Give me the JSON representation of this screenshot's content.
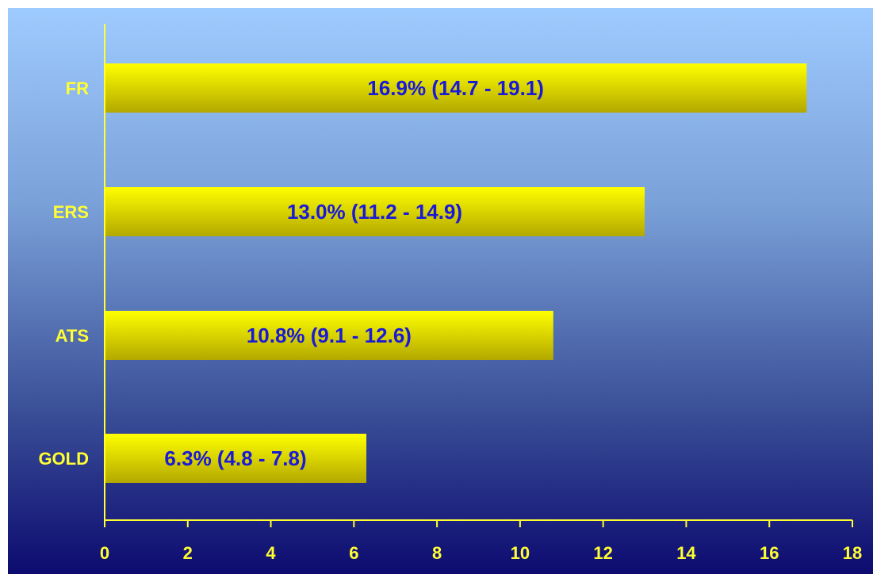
{
  "chart_data": {
    "type": "bar",
    "orientation": "horizontal",
    "categories": [
      "FR",
      "ERS",
      "ATS",
      "GOLD"
    ],
    "values": [
      16.9,
      13.0,
      10.8,
      6.3
    ],
    "data_labels": [
      "16.9% (14.7 - 19.1)",
      "13.0% (11.2 - 14.9)",
      "10.8% (9.1 - 12.6)",
      "6.3% (4.8 - 7.8)"
    ],
    "x_ticks": [
      "0",
      "2",
      "4",
      "6",
      "8",
      "10",
      "12",
      "14",
      "16",
      "18"
    ],
    "xlim": [
      0,
      18
    ],
    "title": "",
    "xlabel": "",
    "ylabel": "",
    "grid": false,
    "legend": "none",
    "colors": {
      "bar_top": "#ffff00",
      "bar_bottom": "#b3a800",
      "axis": "#ffff33",
      "label_text": "#ffff33",
      "data_label_text": "#1a1ad6",
      "background_top": "#9ecbff",
      "background_bottom": "#0d0b70"
    }
  }
}
